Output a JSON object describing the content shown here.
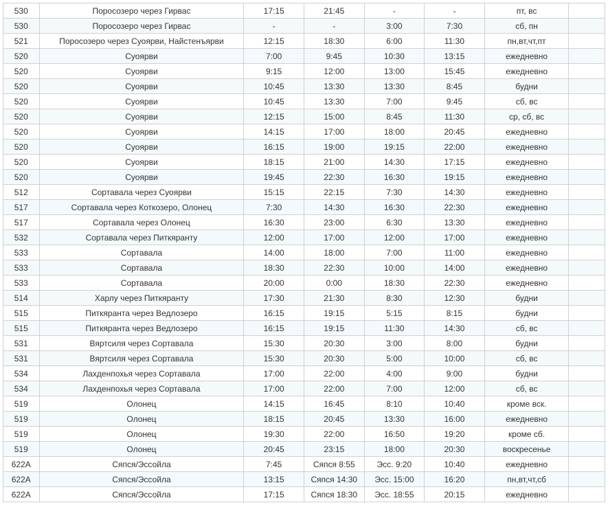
{
  "schedule_table": {
    "type": "table",
    "background_even": "#f4f9fc",
    "background_odd": "#ffffff",
    "border_color": "#d0d0d0",
    "font_size": 12,
    "column_widths_pct": [
      6,
      34,
      10,
      10,
      10,
      10,
      14,
      6
    ],
    "rows": [
      [
        "530",
        "Поросозеро через Гирвас",
        "17:15",
        "21:45",
        "-",
        "-",
        "пт, вс",
        ""
      ],
      [
        "530",
        "Поросозеро через Гирвас",
        "-",
        "-",
        "3:00",
        "7:30",
        "сб, пн",
        ""
      ],
      [
        "521",
        "Поросозеро через Суоярви, Найстенъярви",
        "12:15",
        "18:30",
        "6:00",
        "11:30",
        "пн,вт,чт,пт",
        ""
      ],
      [
        "520",
        "Суоярви",
        "7:00",
        "9:45",
        "10:30",
        "13:15",
        "ежедневно",
        ""
      ],
      [
        "520",
        "Суоярви",
        "9:15",
        "12:00",
        "13:00",
        "15:45",
        "ежедневно",
        ""
      ],
      [
        "520",
        "Суоярви",
        "10:45",
        "13:30",
        "13:30",
        "8:45",
        "будни",
        ""
      ],
      [
        "520",
        "Суоярви",
        "10:45",
        "13:30",
        "7:00",
        "9:45",
        "сб, вс",
        ""
      ],
      [
        "520",
        "Суоярви",
        "12:15",
        "15:00",
        "8:45",
        "11:30",
        "ср, сб, вс",
        ""
      ],
      [
        "520",
        "Суоярви",
        "14:15",
        "17:00",
        "18:00",
        "20:45",
        "ежедневно",
        ""
      ],
      [
        "520",
        "Суоярви",
        "16:15",
        "19:00",
        "19:15",
        "22:00",
        "ежедневно",
        ""
      ],
      [
        "520",
        "Суоярви",
        "18:15",
        "21:00",
        "14:30",
        "17:15",
        "ежедневно",
        ""
      ],
      [
        "520",
        "Суоярви",
        "19:45",
        "22:30",
        "16:30",
        "19:15",
        "ежедневно",
        ""
      ],
      [
        "512",
        "Сортавала через Суоярви",
        "15:15",
        "22:15",
        "7:30",
        "14:30",
        "ежедневно",
        ""
      ],
      [
        "517",
        "Сортавала через Коткозеро, Олонец",
        "7:30",
        "14:30",
        "16:30",
        "22:30",
        "ежедневно",
        ""
      ],
      [
        "517",
        "Сортавала через Олонец",
        "16:30",
        "23:00",
        "6:30",
        "13:30",
        "ежедневно",
        ""
      ],
      [
        "532",
        "Сортавала через Питкяранту",
        "12:00",
        "17:00",
        "12:00",
        "17:00",
        "ежедневно",
        ""
      ],
      [
        "533",
        "Сортавала",
        "14:00",
        "18:00",
        "7:00",
        "11:00",
        "ежедневно",
        ""
      ],
      [
        "533",
        "Сортавала",
        "18:30",
        "22:30",
        "10:00",
        "14:00",
        "ежедневно",
        ""
      ],
      [
        "533",
        "Сортавала",
        "20:00",
        "0:00",
        "18:30",
        "22:30",
        "ежедневно",
        ""
      ],
      [
        "514",
        "Харлу через Питкяранту",
        "17:30",
        "21:30",
        "8:30",
        "12:30",
        "будни",
        ""
      ],
      [
        "515",
        "Питкяранта через Ведлозеро",
        "16:15",
        "19:15",
        "5:15",
        "8:15",
        "будни",
        ""
      ],
      [
        "515",
        "Питкяранта через Ведлозеро",
        "16:15",
        "19:15",
        "11:30",
        "14:30",
        "сб, вс",
        ""
      ],
      [
        "531",
        "Вяртсиля через Сортавала",
        "15:30",
        "20:30",
        "3:00",
        "8:00",
        "будни",
        ""
      ],
      [
        "531",
        "Вяртсиля через Сортавала",
        "15:30",
        "20:30",
        "5:00",
        "10:00",
        "сб, вс",
        ""
      ],
      [
        "534",
        "Лахденпохья через Сортавала",
        "17:00",
        "22:00",
        "4:00",
        "9:00",
        "будни",
        ""
      ],
      [
        "534",
        "Лахденпохья через Сортавала",
        "17:00",
        "22:00",
        "7:00",
        "12:00",
        "сб, вс",
        ""
      ],
      [
        "519",
        "Олонец",
        "14:15",
        "16:45",
        "8:10",
        "10:40",
        "кроме вск.",
        ""
      ],
      [
        "519",
        "Олонец",
        "18:15",
        "20:45",
        "13:30",
        "16:00",
        "ежедневно",
        ""
      ],
      [
        "519",
        "Олонец",
        "19:30",
        "22:00",
        "16:50",
        "19:20",
        "кроме сб.",
        ""
      ],
      [
        "519",
        "Олонец",
        "20:45",
        "23:15",
        "18:00",
        "20:30",
        "воскресенье",
        ""
      ],
      [
        "622А",
        "Сяпся/Эссойла",
        "7:45",
        "Сяпся 8:55",
        "Эсс. 9:20",
        "10:40",
        "ежедневно",
        ""
      ],
      [
        "622А",
        "Сяпся/Эссойла",
        "13:15",
        "Сяпся 14:30",
        "Эсс. 15:00",
        "16:20",
        "пн,вт,чт,сб",
        ""
      ],
      [
        "622А",
        "Сяпся/Эссойла",
        "17:15",
        "Сяпся 18:30",
        "Эсс. 18:55",
        "20:15",
        "ежедневно",
        ""
      ]
    ]
  }
}
